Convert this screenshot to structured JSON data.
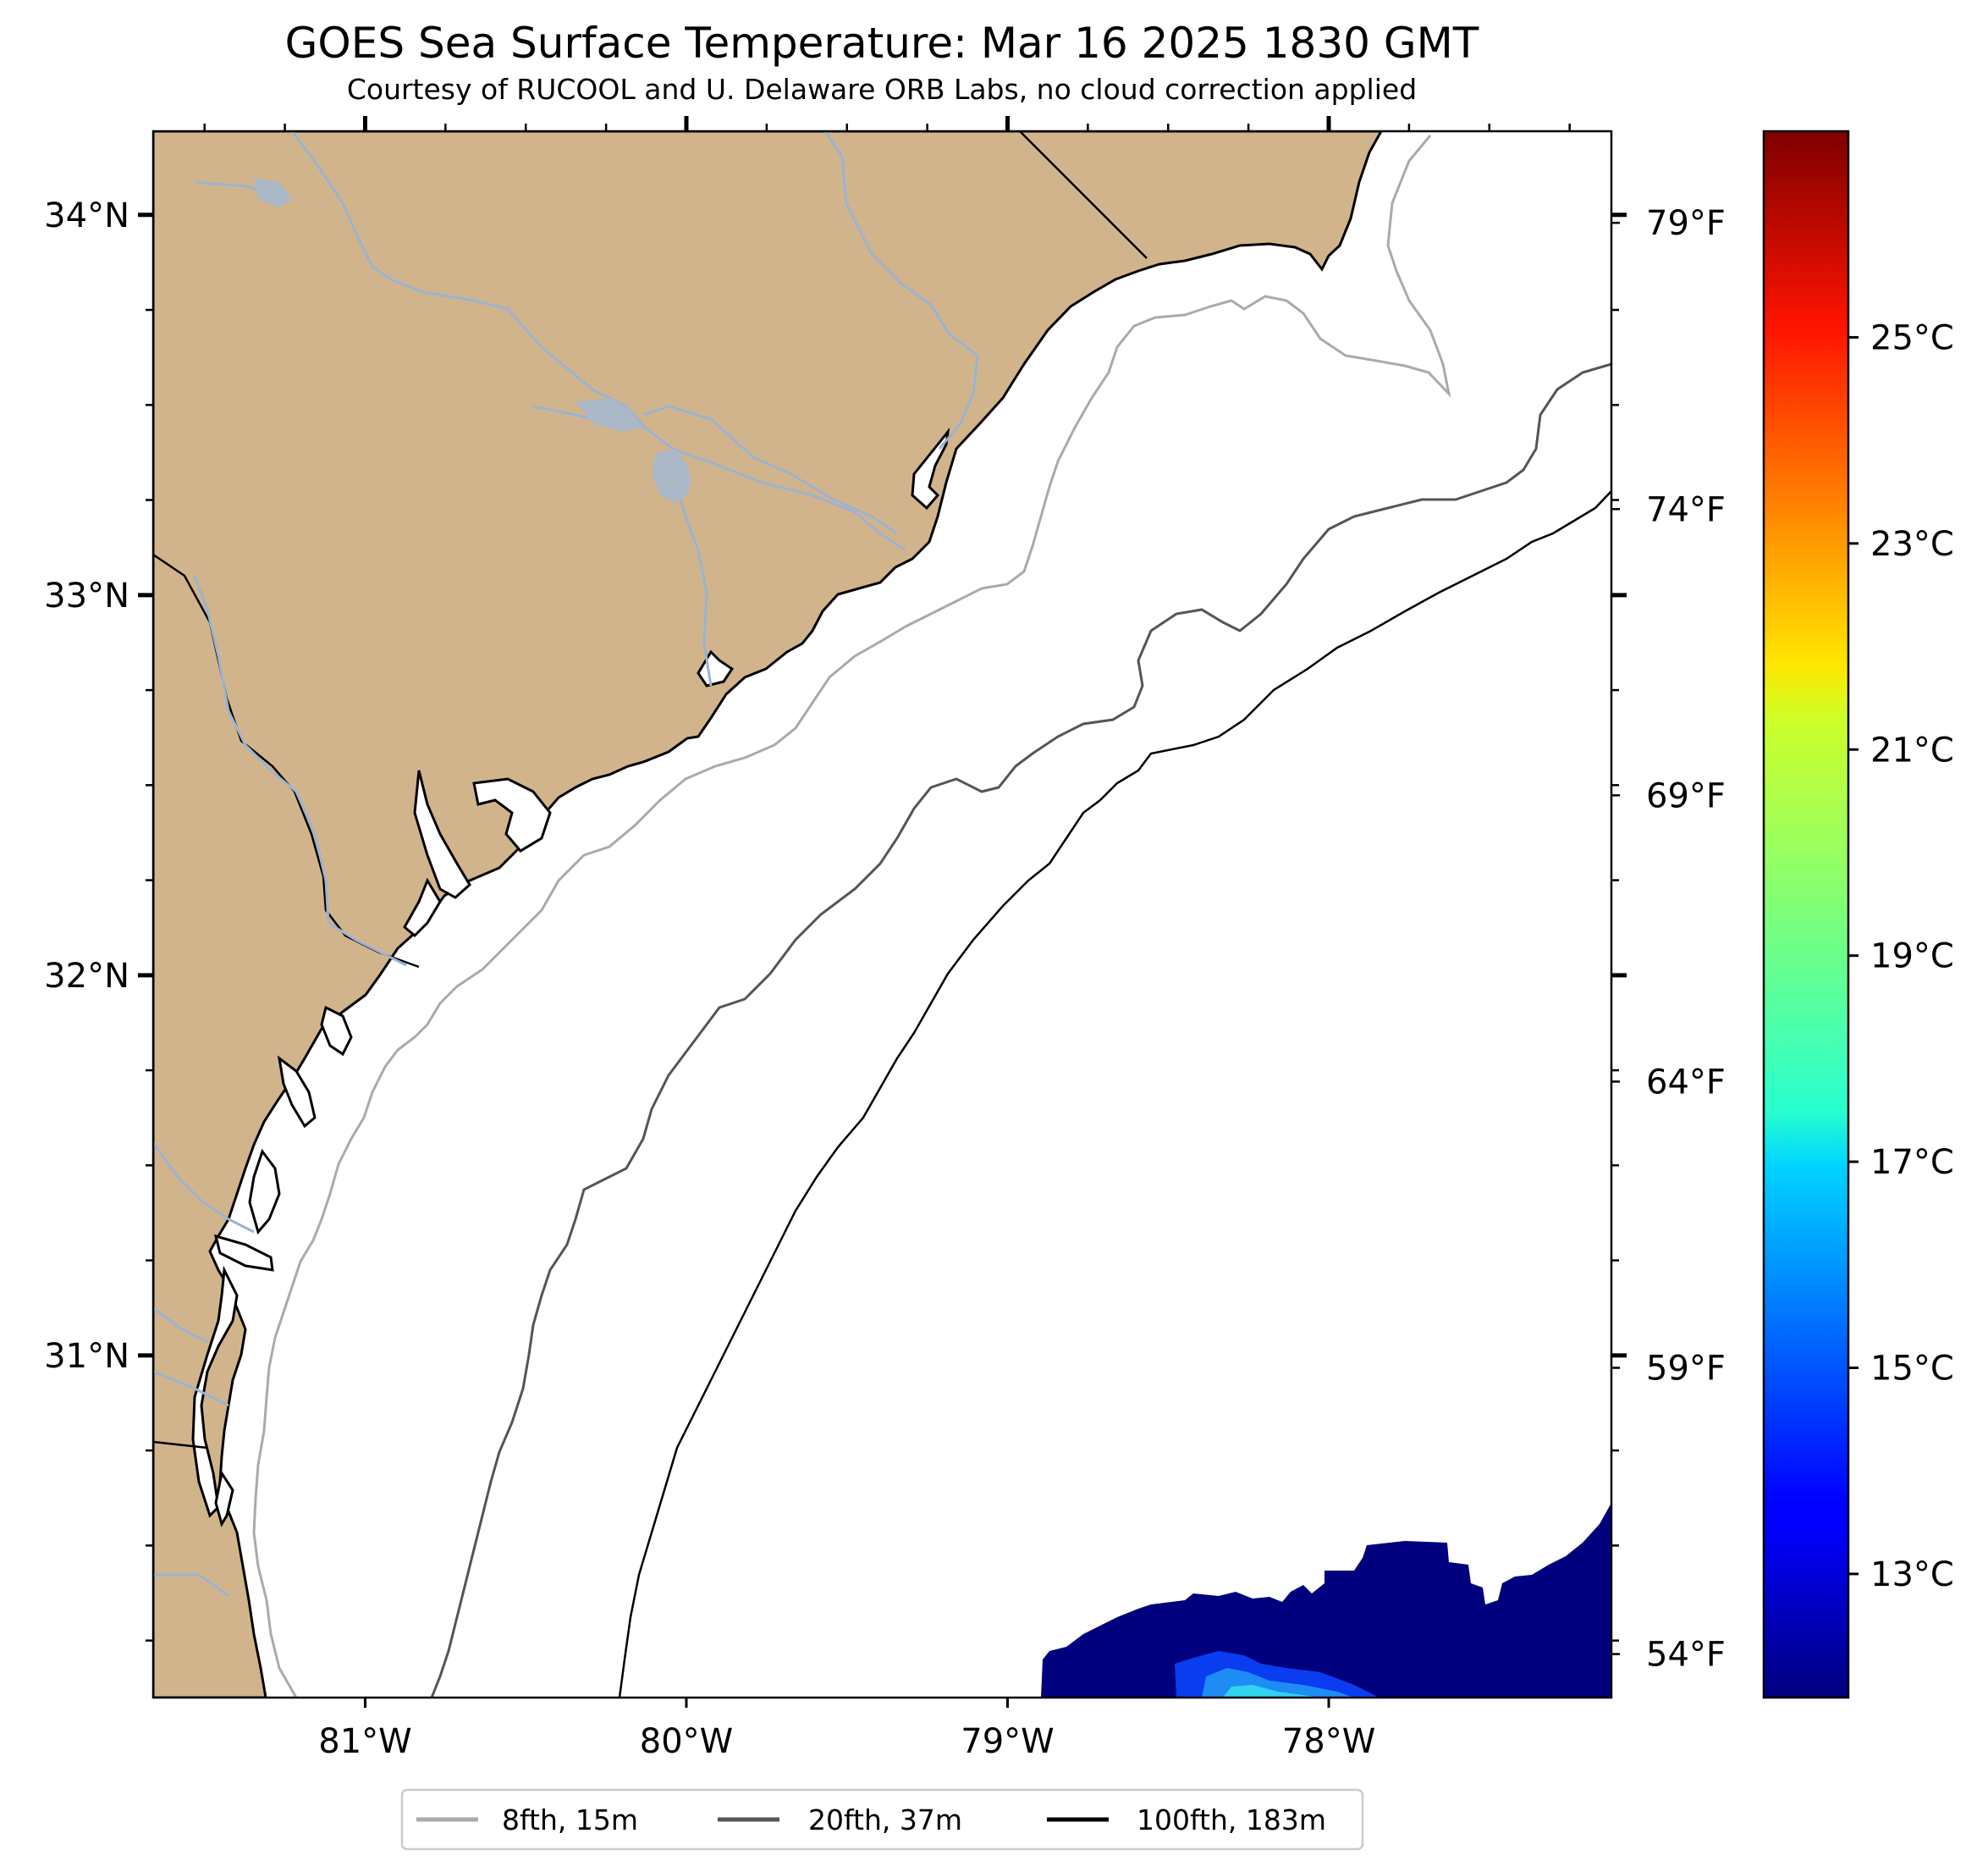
{
  "title": "GOES Sea Surface Temperature: Mar 16 2025 1830 GMT",
  "subtitle": "Courtesy of RUCOOL and U. Delaware ORB Labs, no cloud correction applied",
  "map": {
    "lon_range": [
      -81.66,
      -77.12
    ],
    "lat_range": [
      30.1,
      34.22
    ],
    "lon_ticks": [
      {
        "value": -81,
        "label": "81°W"
      },
      {
        "value": -80,
        "label": "80°W"
      },
      {
        "value": -79,
        "label": "79°W"
      },
      {
        "value": -78,
        "label": "78°W"
      }
    ],
    "lat_ticks": [
      {
        "value": 34,
        "label": "34°N"
      },
      {
        "value": 33,
        "label": "33°N"
      },
      {
        "value": 32,
        "label": "32°N"
      },
      {
        "value": 31,
        "label": "31°N"
      }
    ],
    "land_color": "#d2b48c",
    "water_color": "#ffffff",
    "river_color": "#9bb3d1",
    "lake_color": "#aab8c8"
  },
  "fahrenheit_ticks": [
    {
      "value": 79,
      "label": "79°F"
    },
    {
      "value": 74,
      "label": "74°F"
    },
    {
      "value": 69,
      "label": "69°F"
    },
    {
      "value": 64,
      "label": "64°F"
    },
    {
      "value": 59,
      "label": "59°F"
    },
    {
      "value": 54,
      "label": "54°F"
    }
  ],
  "colorbar": {
    "colormap": "jet",
    "range_c": [
      11.8,
      27.0
    ],
    "ticks": [
      {
        "value": 25,
        "label": "25°C"
      },
      {
        "value": 23,
        "label": "23°C"
      },
      {
        "value": 21,
        "label": "21°C"
      },
      {
        "value": 19,
        "label": "19°C"
      },
      {
        "value": 17,
        "label": "17°C"
      },
      {
        "value": 15,
        "label": "15°C"
      },
      {
        "value": 13,
        "label": "13°C"
      }
    ]
  },
  "legend": [
    {
      "label": "8fth, 15m",
      "color": "#aaaaaa"
    },
    {
      "label": "20fth, 37m",
      "color": "#555555"
    },
    {
      "label": "100fth, 183m",
      "color": "#000000"
    }
  ],
  "sst_region": {
    "color": "#00007f",
    "patch_colors": [
      "#0a3cf0",
      "#1e8cf5",
      "#32d2f0"
    ]
  }
}
